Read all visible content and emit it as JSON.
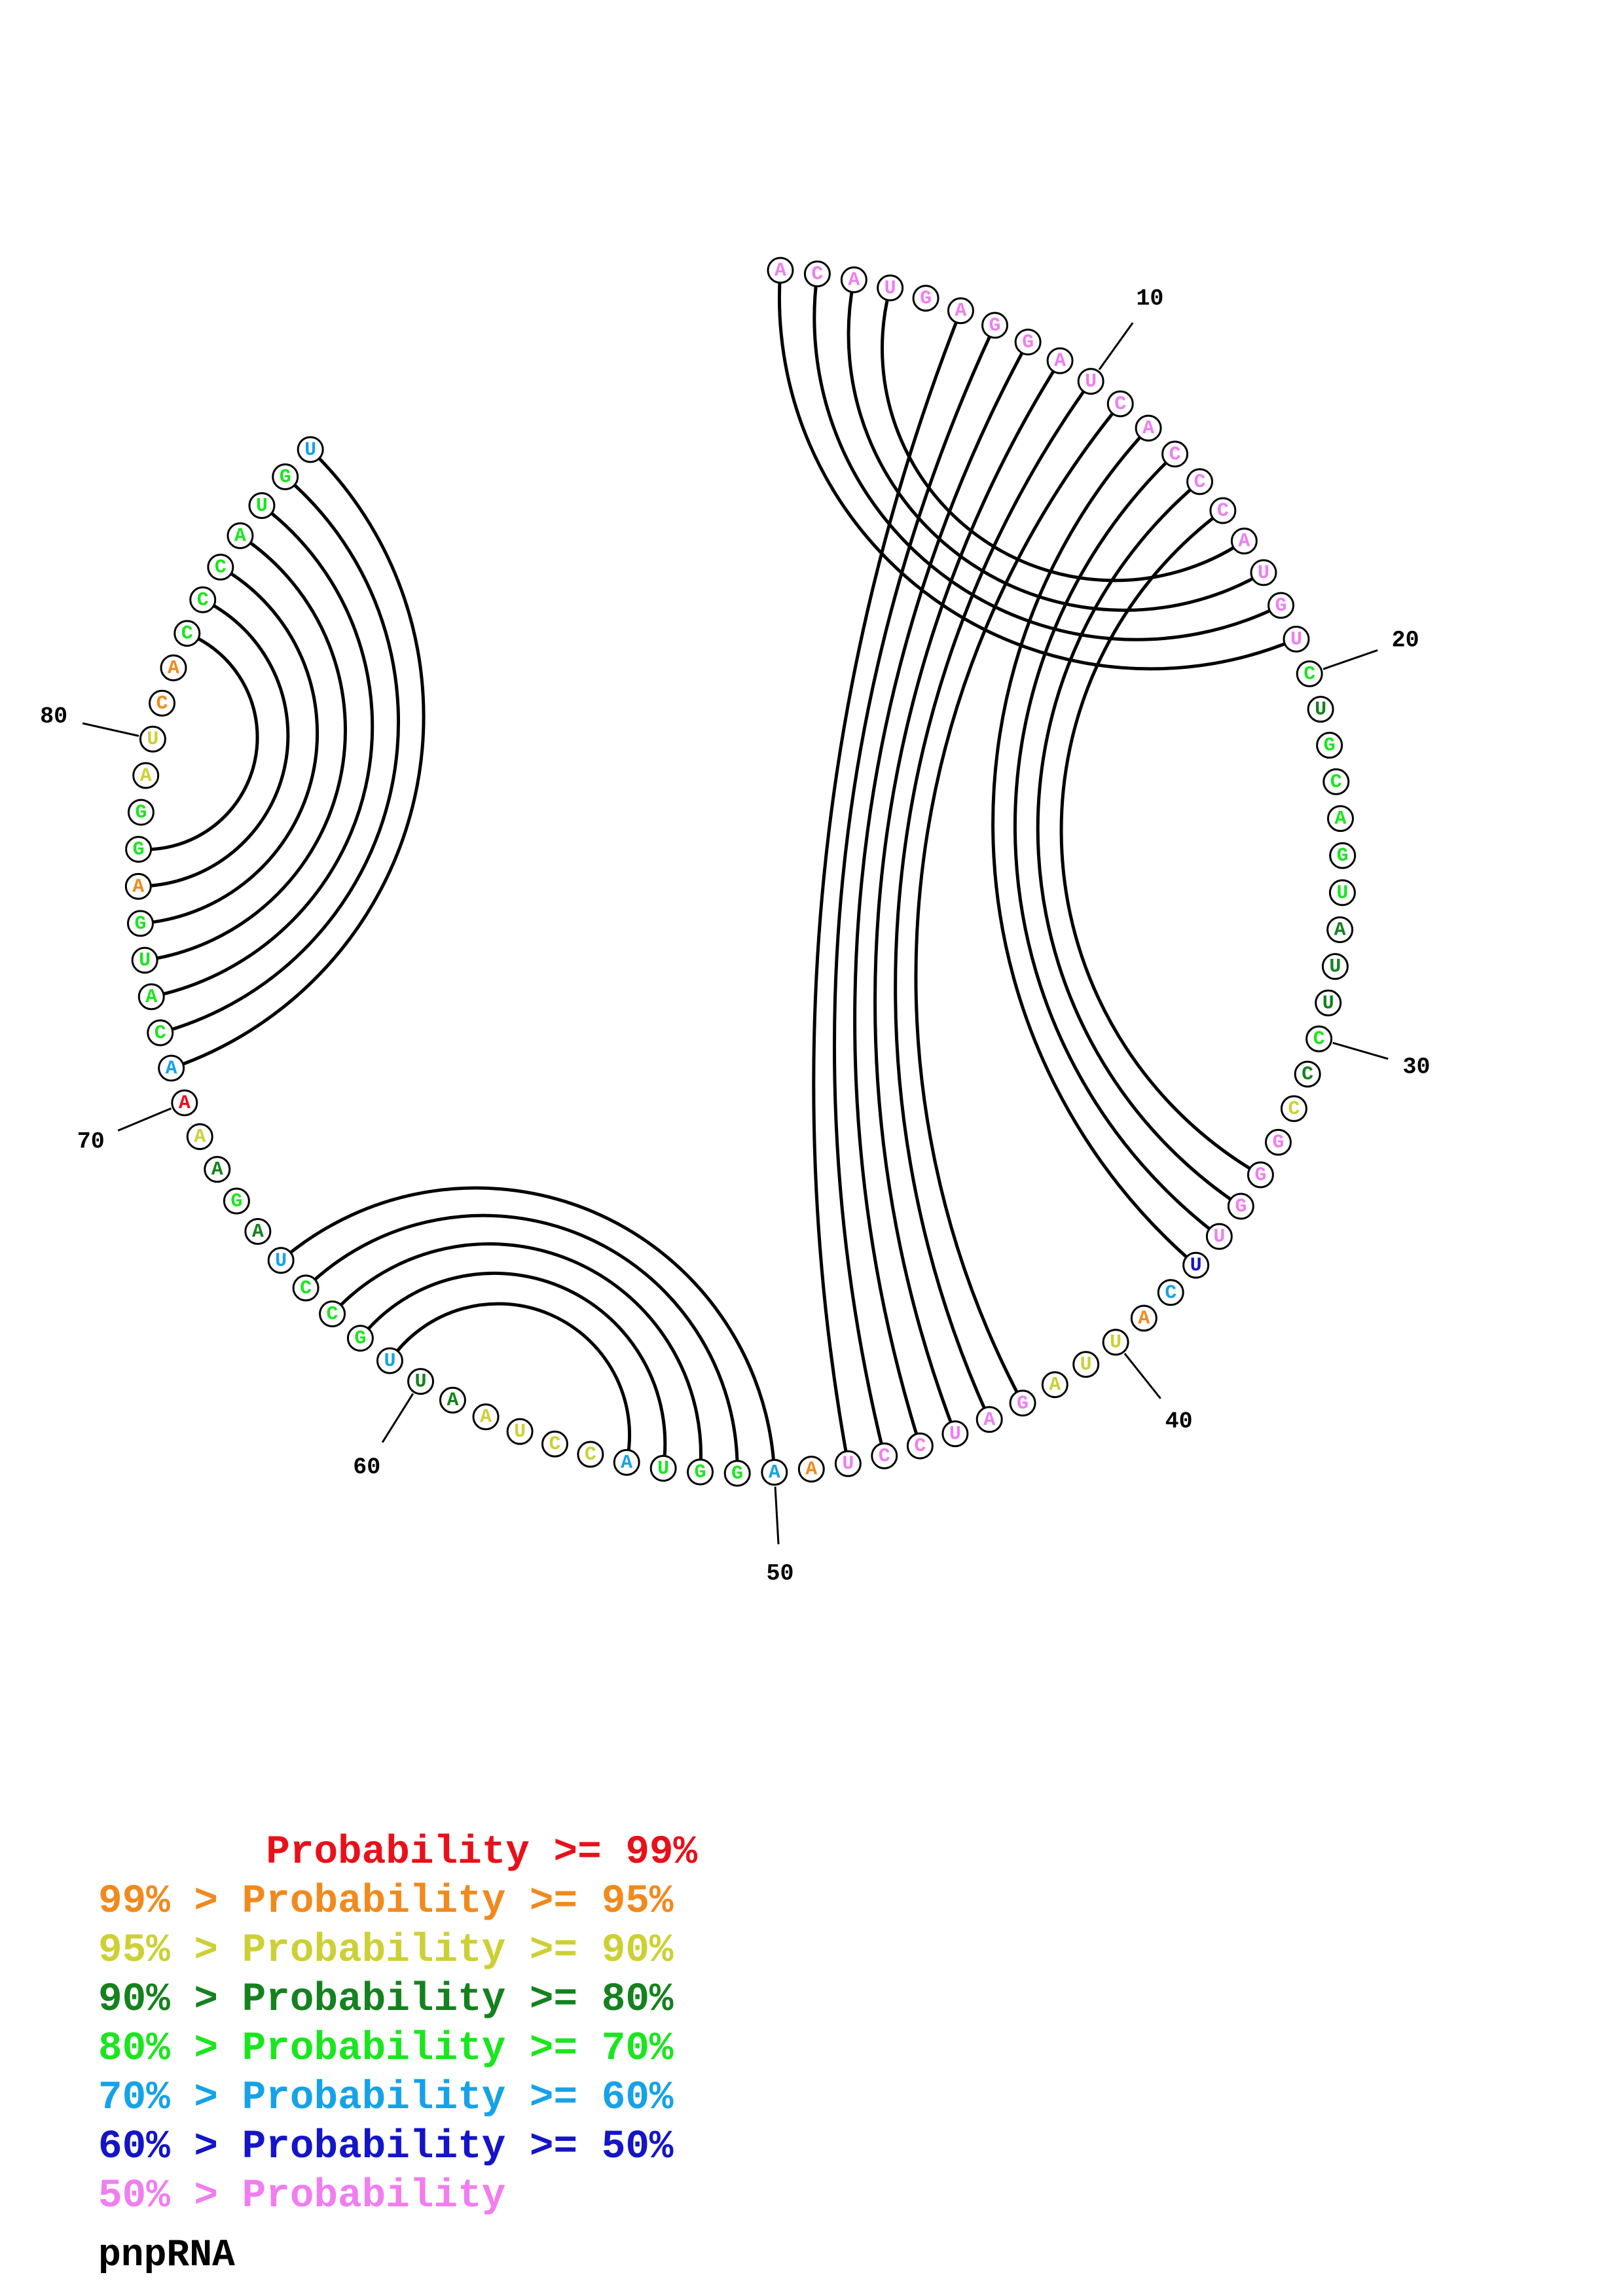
{
  "title": "pnpRNA",
  "colors": {
    "p99": "#e8101a",
    "p95": "#f08a1e",
    "p90": "#cdd035",
    "p80": "#14821e",
    "p70": "#1ae61e",
    "p60": "#16a2e8",
    "p50": "#1414c8",
    "plow": "#f07ef0"
  },
  "legend": [
    {
      "text": "       Probability >= 99%",
      "color": "p99"
    },
    {
      "text": "99% > Probability >= 95%",
      "color": "p95"
    },
    {
      "text": "95% > Probability >= 90%",
      "color": "p90"
    },
    {
      "text": "90% > Probability >= 80%",
      "color": "p80"
    },
    {
      "text": "80% > Probability >= 70%",
      "color": "p70"
    },
    {
      "text": "70% > Probability >= 60%",
      "color": "p60"
    },
    {
      "text": "60% > Probability >= 50%",
      "color": "p50"
    },
    {
      "text": "50% > Probability",
      "color": "plow"
    }
  ],
  "sequence": [
    {
      "n": 1,
      "base": "A",
      "p": "plow"
    },
    {
      "n": 2,
      "base": "C",
      "p": "plow"
    },
    {
      "n": 3,
      "base": "A",
      "p": "plow"
    },
    {
      "n": 4,
      "base": "U",
      "p": "plow"
    },
    {
      "n": 5,
      "base": "G",
      "p": "plow"
    },
    {
      "n": 6,
      "base": "A",
      "p": "plow"
    },
    {
      "n": 7,
      "base": "G",
      "p": "plow"
    },
    {
      "n": 8,
      "base": "G",
      "p": "plow"
    },
    {
      "n": 9,
      "base": "A",
      "p": "plow"
    },
    {
      "n": 10,
      "base": "U",
      "p": "plow"
    },
    {
      "n": 11,
      "base": "C",
      "p": "plow"
    },
    {
      "n": 12,
      "base": "A",
      "p": "plow"
    },
    {
      "n": 13,
      "base": "C",
      "p": "plow"
    },
    {
      "n": 14,
      "base": "C",
      "p": "plow"
    },
    {
      "n": 15,
      "base": "C",
      "p": "plow"
    },
    {
      "n": 16,
      "base": "A",
      "p": "plow"
    },
    {
      "n": 17,
      "base": "U",
      "p": "plow"
    },
    {
      "n": 18,
      "base": "G",
      "p": "plow"
    },
    {
      "n": 19,
      "base": "U",
      "p": "plow"
    },
    {
      "n": 20,
      "base": "C",
      "p": "p70"
    },
    {
      "n": 21,
      "base": "U",
      "p": "p80"
    },
    {
      "n": 22,
      "base": "G",
      "p": "p70"
    },
    {
      "n": 23,
      "base": "C",
      "p": "p70"
    },
    {
      "n": 24,
      "base": "A",
      "p": "p70"
    },
    {
      "n": 25,
      "base": "G",
      "p": "p70"
    },
    {
      "n": 26,
      "base": "U",
      "p": "p70"
    },
    {
      "n": 27,
      "base": "A",
      "p": "p80"
    },
    {
      "n": 28,
      "base": "U",
      "p": "p80"
    },
    {
      "n": 29,
      "base": "U",
      "p": "p80"
    },
    {
      "n": 30,
      "base": "C",
      "p": "p70"
    },
    {
      "n": 31,
      "base": "C",
      "p": "p80"
    },
    {
      "n": 32,
      "base": "C",
      "p": "p90"
    },
    {
      "n": 33,
      "base": "G",
      "p": "plow"
    },
    {
      "n": 34,
      "base": "G",
      "p": "plow"
    },
    {
      "n": 35,
      "base": "G",
      "p": "plow"
    },
    {
      "n": 36,
      "base": "U",
      "p": "plow"
    },
    {
      "n": 37,
      "base": "U",
      "p": "p50"
    },
    {
      "n": 38,
      "base": "C",
      "p": "p60"
    },
    {
      "n": 39,
      "base": "A",
      "p": "p95"
    },
    {
      "n": 40,
      "base": "U",
      "p": "p90"
    },
    {
      "n": 41,
      "base": "U",
      "p": "p90"
    },
    {
      "n": 42,
      "base": "A",
      "p": "p90"
    },
    {
      "n": 43,
      "base": "G",
      "p": "plow"
    },
    {
      "n": 44,
      "base": "A",
      "p": "plow"
    },
    {
      "n": 45,
      "base": "U",
      "p": "plow"
    },
    {
      "n": 46,
      "base": "C",
      "p": "plow"
    },
    {
      "n": 47,
      "base": "C",
      "p": "plow"
    },
    {
      "n": 48,
      "base": "U",
      "p": "plow"
    },
    {
      "n": 49,
      "base": "A",
      "p": "p95"
    },
    {
      "n": 50,
      "base": "A",
      "p": "p60"
    },
    {
      "n": 51,
      "base": "G",
      "p": "p70"
    },
    {
      "n": 52,
      "base": "G",
      "p": "p70"
    },
    {
      "n": 53,
      "base": "U",
      "p": "p70"
    },
    {
      "n": 54,
      "base": "A",
      "p": "p60"
    },
    {
      "n": 55,
      "base": "C",
      "p": "p90"
    },
    {
      "n": 56,
      "base": "C",
      "p": "p90"
    },
    {
      "n": 57,
      "base": "U",
      "p": "p90"
    },
    {
      "n": 58,
      "base": "A",
      "p": "p90"
    },
    {
      "n": 59,
      "base": "A",
      "p": "p80"
    },
    {
      "n": 60,
      "base": "U",
      "p": "p80"
    },
    {
      "n": 61,
      "base": "U",
      "p": "p60"
    },
    {
      "n": 62,
      "base": "G",
      "p": "p70"
    },
    {
      "n": 63,
      "base": "C",
      "p": "p70"
    },
    {
      "n": 64,
      "base": "C",
      "p": "p70"
    },
    {
      "n": 65,
      "base": "U",
      "p": "p60"
    },
    {
      "n": 66,
      "base": "A",
      "p": "p80"
    },
    {
      "n": 67,
      "base": "G",
      "p": "p70"
    },
    {
      "n": 68,
      "base": "A",
      "p": "p80"
    },
    {
      "n": 69,
      "base": "A",
      "p": "p90"
    },
    {
      "n": 70,
      "base": "A",
      "p": "p99"
    },
    {
      "n": 71,
      "base": "A",
      "p": "p60"
    },
    {
      "n": 72,
      "base": "C",
      "p": "p70"
    },
    {
      "n": 73,
      "base": "A",
      "p": "p70"
    },
    {
      "n": 74,
      "base": "U",
      "p": "p70"
    },
    {
      "n": 75,
      "base": "G",
      "p": "p70"
    },
    {
      "n": 76,
      "base": "A",
      "p": "p95"
    },
    {
      "n": 77,
      "base": "G",
      "p": "p70"
    },
    {
      "n": 78,
      "base": "G",
      "p": "p70"
    },
    {
      "n": 79,
      "base": "A",
      "p": "p90"
    },
    {
      "n": 80,
      "base": "U",
      "p": "p90"
    },
    {
      "n": 81,
      "base": "C",
      "p": "p95"
    },
    {
      "n": 82,
      "base": "A",
      "p": "p95"
    },
    {
      "n": 83,
      "base": "C",
      "p": "p70"
    },
    {
      "n": 84,
      "base": "C",
      "p": "p70"
    },
    {
      "n": 85,
      "base": "C",
      "p": "p70"
    },
    {
      "n": 86,
      "base": "A",
      "p": "p70"
    },
    {
      "n": 87,
      "base": "U",
      "p": "p70"
    },
    {
      "n": 88,
      "base": "G",
      "p": "p70"
    },
    {
      "n": 89,
      "base": "U",
      "p": "p60"
    }
  ],
  "number_labels": [
    "10",
    "20",
    "30",
    "40",
    "50",
    "60",
    "70",
    "80"
  ],
  "pairs": [
    [
      1,
      19
    ],
    [
      2,
      18
    ],
    [
      3,
      17
    ],
    [
      4,
      16
    ],
    [
      6,
      48
    ],
    [
      7,
      47
    ],
    [
      8,
      46
    ],
    [
      9,
      45
    ],
    [
      10,
      44
    ],
    [
      11,
      43
    ],
    [
      12,
      37
    ],
    [
      13,
      36
    ],
    [
      14,
      35
    ],
    [
      15,
      34
    ],
    [
      50,
      65
    ],
    [
      51,
      64
    ],
    [
      52,
      63
    ],
    [
      53,
      62
    ],
    [
      54,
      61
    ],
    [
      71,
      89
    ],
    [
      72,
      88
    ],
    [
      73,
      87
    ],
    [
      74,
      86
    ],
    [
      75,
      85
    ],
    [
      76,
      84
    ],
    [
      77,
      83
    ]
  ]
}
